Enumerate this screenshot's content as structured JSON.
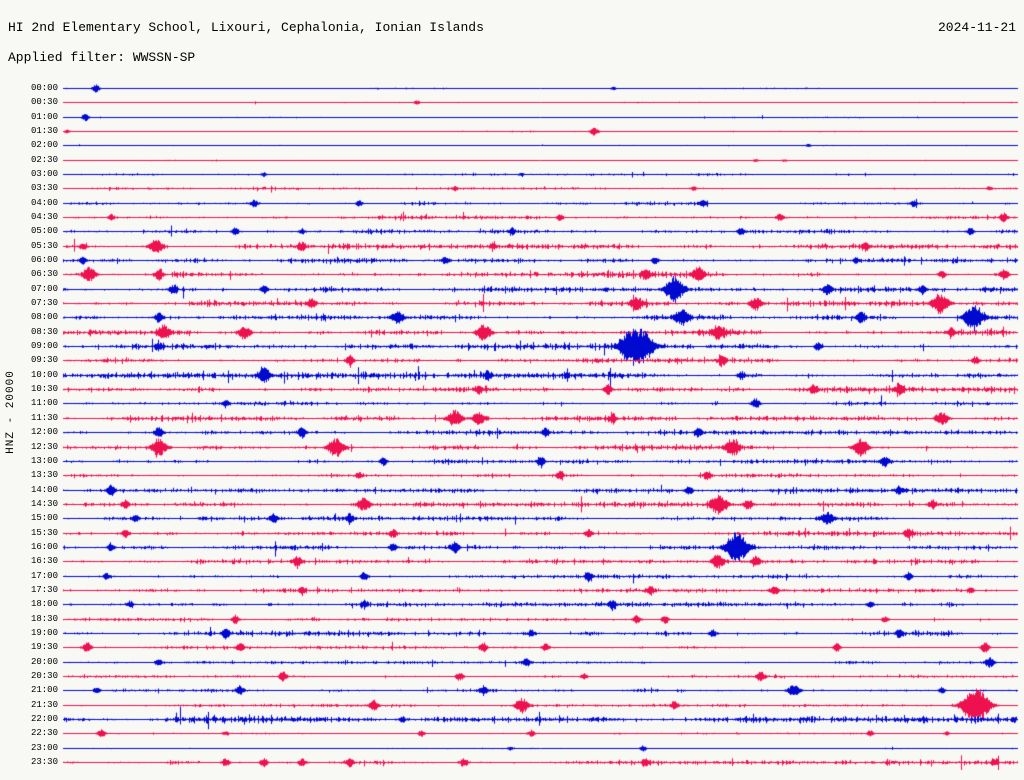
{
  "header": {
    "title": "HI 2nd Elementary School, Lixouri, Cephalonia, Ionian Islands",
    "date": "2024-11-21",
    "filter_line": "Applied filter: WWSSN-SP"
  },
  "y_axis": {
    "label": "HNZ - 20000"
  },
  "chart_data": {
    "type": "line",
    "subtype": "helicorder",
    "title": "HI 2nd Elementary School, Lixouri, Cephalonia, Ionian Islands",
    "date": "2024-11-21",
    "applied_filter": "WWSSN-SP",
    "channel": "HNZ",
    "scale": "20000",
    "minutes_per_row": 30,
    "row_count": 48,
    "x_range": [
      "00:00",
      "24:00"
    ],
    "grid": false,
    "legend": "none",
    "trace_colors": {
      "blue": "#0009cf",
      "red": "#ee1150"
    },
    "rows": [
      {
        "time": "00:00",
        "color": "blue",
        "noise": 0.4,
        "events": [
          [
            0.034,
            4
          ],
          [
            0.576,
            2
          ]
        ]
      },
      {
        "time": "00:30",
        "color": "red",
        "noise": 0.35,
        "events": [
          [
            0.37,
            2
          ]
        ]
      },
      {
        "time": "01:00",
        "color": "blue",
        "noise": 0.4,
        "events": [
          [
            0.023,
            3.5
          ]
        ]
      },
      {
        "time": "01:30",
        "color": "red",
        "noise": 0.35,
        "events": [
          [
            0.004,
            2
          ],
          [
            0.556,
            4
          ]
        ]
      },
      {
        "time": "02:00",
        "color": "blue",
        "noise": 0.35,
        "events": [
          [
            0.78,
            1.5
          ]
        ]
      },
      {
        "time": "02:30",
        "color": "red",
        "noise": 0.35,
        "events": [
          [
            0.725,
            1.5
          ],
          [
            0.755,
            1.5
          ]
        ]
      },
      {
        "time": "03:00",
        "color": "blue",
        "noise": 0.7,
        "events": [
          [
            0.21,
            2
          ],
          [
            0.48,
            1.5
          ]
        ]
      },
      {
        "time": "03:30",
        "color": "red",
        "noise": 0.8,
        "events": [
          [
            0.41,
            2
          ],
          [
            0.66,
            2
          ],
          [
            0.97,
            2
          ]
        ]
      },
      {
        "time": "04:00",
        "color": "blue",
        "noise": 1.3,
        "events": [
          [
            0.2,
            3.5
          ],
          [
            0.31,
            3
          ],
          [
            0.67,
            3.5
          ],
          [
            0.89,
            3
          ]
        ]
      },
      {
        "time": "04:30",
        "color": "red",
        "noise": 1.5,
        "events": [
          [
            0.05,
            3
          ],
          [
            0.52,
            3.5
          ],
          [
            0.75,
            3.5
          ],
          [
            0.985,
            4
          ]
        ]
      },
      {
        "time": "05:00",
        "color": "blue",
        "noise": 1.3,
        "events": [
          [
            0.18,
            3.5
          ],
          [
            0.25,
            3
          ],
          [
            0.47,
            3
          ],
          [
            0.71,
            3.5
          ],
          [
            0.95,
            3.5
          ]
        ]
      },
      {
        "time": "05:30",
        "color": "red",
        "noise": 1.7,
        "events": [
          [
            0.021,
            3
          ],
          [
            0.097,
            7
          ],
          [
            0.25,
            4
          ],
          [
            0.45,
            3
          ],
          [
            0.84,
            4
          ]
        ]
      },
      {
        "time": "06:00",
        "color": "blue",
        "noise": 1.8,
        "events": [
          [
            0.02,
            3
          ],
          [
            0.4,
            3.5
          ],
          [
            0.62,
            3.5
          ],
          [
            0.83,
            3
          ]
        ]
      },
      {
        "time": "06:30",
        "color": "red",
        "noise": 1.8,
        "events": [
          [
            0.027,
            7
          ],
          [
            0.1,
            5
          ],
          [
            0.61,
            5
          ],
          [
            0.665,
            6
          ],
          [
            0.92,
            4
          ],
          [
            0.985,
            5
          ]
        ]
      },
      {
        "time": "07:00",
        "color": "blue",
        "noise": 2.0,
        "events": [
          [
            0.115,
            4
          ],
          [
            0.21,
            4
          ],
          [
            0.64,
            11
          ],
          [
            0.8,
            5
          ],
          [
            0.9,
            4
          ]
        ]
      },
      {
        "time": "07:30",
        "color": "red",
        "noise": 1.8,
        "events": [
          [
            0.26,
            5
          ],
          [
            0.6,
            6
          ],
          [
            0.725,
            6
          ],
          [
            0.918,
            10
          ]
        ]
      },
      {
        "time": "08:00",
        "color": "blue",
        "noise": 1.8,
        "events": [
          [
            0.1,
            5
          ],
          [
            0.35,
            6
          ],
          [
            0.648,
            7
          ],
          [
            0.835,
            5
          ],
          [
            0.953,
            11
          ]
        ]
      },
      {
        "time": "08:30",
        "color": "red",
        "noise": 1.9,
        "events": [
          [
            0.105,
            7
          ],
          [
            0.19,
            6
          ],
          [
            0.44,
            8
          ],
          [
            0.685,
            6
          ],
          [
            0.93,
            4
          ]
        ]
      },
      {
        "time": "09:00",
        "color": "blue",
        "noise": 1.8,
        "events": [
          [
            0.1,
            3
          ],
          [
            0.592,
            13
          ],
          [
            0.607,
            14
          ],
          [
            0.79,
            4
          ]
        ]
      },
      {
        "time": "09:30",
        "color": "red",
        "noise": 1.7,
        "events": [
          [
            0.3,
            4
          ],
          [
            0.69,
            4
          ],
          [
            0.955,
            4
          ]
        ]
      },
      {
        "time": "10:00",
        "color": "blue",
        "noise": 2.2,
        "events": [
          [
            0.21,
            6
          ],
          [
            0.445,
            4
          ],
          [
            0.71,
            4
          ]
        ]
      },
      {
        "time": "10:30",
        "color": "red",
        "noise": 2.0,
        "events": [
          [
            0.435,
            4
          ],
          [
            0.57,
            5
          ],
          [
            0.785,
            4
          ],
          [
            0.875,
            5
          ]
        ]
      },
      {
        "time": "11:00",
        "color": "blue",
        "noise": 1.3,
        "events": [
          [
            0.17,
            3
          ],
          [
            0.725,
            5
          ]
        ]
      },
      {
        "time": "11:30",
        "color": "red",
        "noise": 1.8,
        "events": [
          [
            0.41,
            8
          ],
          [
            0.435,
            6
          ],
          [
            0.575,
            4
          ],
          [
            0.92,
            6
          ]
        ]
      },
      {
        "time": "12:00",
        "color": "blue",
        "noise": 1.7,
        "events": [
          [
            0.1,
            5
          ],
          [
            0.25,
            5
          ],
          [
            0.505,
            4
          ],
          [
            0.665,
            4
          ]
        ]
      },
      {
        "time": "12:30",
        "color": "red",
        "noise": 1.9,
        "events": [
          [
            0.1,
            8
          ],
          [
            0.285,
            9
          ],
          [
            0.7,
            7
          ],
          [
            0.835,
            8
          ]
        ]
      },
      {
        "time": "13:00",
        "color": "blue",
        "noise": 1.6,
        "events": [
          [
            0.335,
            4
          ],
          [
            0.5,
            4
          ],
          [
            0.86,
            5
          ]
        ]
      },
      {
        "time": "13:30",
        "color": "red",
        "noise": 1.4,
        "events": [
          [
            0.31,
            3
          ],
          [
            0.52,
            4
          ],
          [
            0.675,
            4
          ]
        ]
      },
      {
        "time": "14:00",
        "color": "blue",
        "noise": 1.6,
        "events": [
          [
            0.05,
            5
          ],
          [
            0.655,
            4
          ],
          [
            0.875,
            3
          ]
        ]
      },
      {
        "time": "14:30",
        "color": "red",
        "noise": 1.5,
        "events": [
          [
            0.065,
            4
          ],
          [
            0.315,
            6
          ],
          [
            0.686,
            9
          ],
          [
            0.717,
            5
          ],
          [
            0.91,
            4
          ]
        ]
      },
      {
        "time": "15:00",
        "color": "blue",
        "noise": 1.5,
        "events": [
          [
            0.075,
            3
          ],
          [
            0.22,
            4
          ],
          [
            0.3,
            4
          ],
          [
            0.8,
            6
          ]
        ]
      },
      {
        "time": "15:30",
        "color": "red",
        "noise": 1.5,
        "events": [
          [
            0.065,
            4
          ],
          [
            0.345,
            4
          ],
          [
            0.55,
            4
          ],
          [
            0.885,
            4
          ]
        ]
      },
      {
        "time": "16:00",
        "color": "blue",
        "noise": 2.1,
        "events": [
          [
            0.05,
            4
          ],
          [
            0.345,
            4
          ],
          [
            0.41,
            5
          ],
          [
            0.705,
            14
          ]
        ]
      },
      {
        "time": "16:30",
        "color": "red",
        "noise": 1.5,
        "events": [
          [
            0.245,
            5
          ],
          [
            0.685,
            6
          ],
          [
            0.725,
            5
          ]
        ]
      },
      {
        "time": "17:00",
        "color": "blue",
        "noise": 1.2,
        "events": [
          [
            0.045,
            3
          ],
          [
            0.315,
            4
          ],
          [
            0.55,
            4
          ],
          [
            0.885,
            4
          ]
        ]
      },
      {
        "time": "17:30",
        "color": "red",
        "noise": 1.2,
        "events": [
          [
            0.25,
            3
          ],
          [
            0.615,
            4
          ],
          [
            0.745,
            4
          ],
          [
            0.95,
            3
          ]
        ]
      },
      {
        "time": "18:00",
        "color": "blue",
        "noise": 1.5,
        "events": [
          [
            0.07,
            3
          ],
          [
            0.315,
            3
          ],
          [
            0.575,
            4
          ],
          [
            0.845,
            3
          ]
        ]
      },
      {
        "time": "18:30",
        "color": "red",
        "noise": 1.2,
        "events": [
          [
            0.18,
            4
          ],
          [
            0.6,
            4
          ],
          [
            0.63,
            4
          ],
          [
            0.86,
            3
          ]
        ]
      },
      {
        "time": "19:00",
        "color": "blue",
        "noise": 1.7,
        "events": [
          [
            0.17,
            4
          ],
          [
            0.49,
            3
          ],
          [
            0.68,
            4
          ],
          [
            0.875,
            4
          ]
        ]
      },
      {
        "time": "19:30",
        "color": "red",
        "noise": 1.0,
        "events": [
          [
            0.025,
            5
          ],
          [
            0.185,
            4
          ],
          [
            0.44,
            4
          ],
          [
            0.505,
            4
          ],
          [
            0.81,
            4
          ],
          [
            0.965,
            5
          ]
        ]
      },
      {
        "time": "20:00",
        "color": "blue",
        "noise": 1.0,
        "events": [
          [
            0.1,
            3
          ],
          [
            0.485,
            4
          ],
          [
            0.97,
            5
          ]
        ]
      },
      {
        "time": "20:30",
        "color": "red",
        "noise": 1.0,
        "events": [
          [
            0.23,
            5
          ],
          [
            0.415,
            4
          ],
          [
            0.545,
            3
          ],
          [
            0.73,
            4
          ]
        ]
      },
      {
        "time": "21:00",
        "color": "blue",
        "noise": 0.9,
        "events": [
          [
            0.035,
            3
          ],
          [
            0.185,
            4
          ],
          [
            0.44,
            4
          ],
          [
            0.765,
            6
          ],
          [
            0.92,
            3
          ]
        ]
      },
      {
        "time": "21:30",
        "color": "red",
        "noise": 0.9,
        "events": [
          [
            0.325,
            5
          ],
          [
            0.48,
            7
          ],
          [
            0.64,
            4
          ],
          [
            0.955,
            18
          ]
        ]
      },
      {
        "time": "22:00",
        "color": "blue",
        "noise": 2.3,
        "events": [
          [
            0.355,
            3
          ]
        ]
      },
      {
        "time": "22:30",
        "color": "red",
        "noise": 0.5,
        "events": [
          [
            0.04,
            4
          ],
          [
            0.17,
            2
          ],
          [
            0.375,
            3
          ],
          [
            0.49,
            3
          ],
          [
            0.845,
            3
          ],
          [
            0.925,
            2
          ]
        ]
      },
      {
        "time": "23:00",
        "color": "blue",
        "noise": 0.35,
        "events": [
          [
            0.468,
            2
          ],
          [
            0.607,
            3
          ]
        ]
      },
      {
        "time": "23:30",
        "color": "red",
        "noise": 1.4,
        "events": [
          [
            0.17,
            4
          ],
          [
            0.21,
            4
          ],
          [
            0.25,
            4
          ],
          [
            0.3,
            4
          ],
          [
            0.42,
            4
          ],
          [
            0.61,
            3
          ],
          [
            0.975,
            3
          ]
        ]
      }
    ]
  }
}
